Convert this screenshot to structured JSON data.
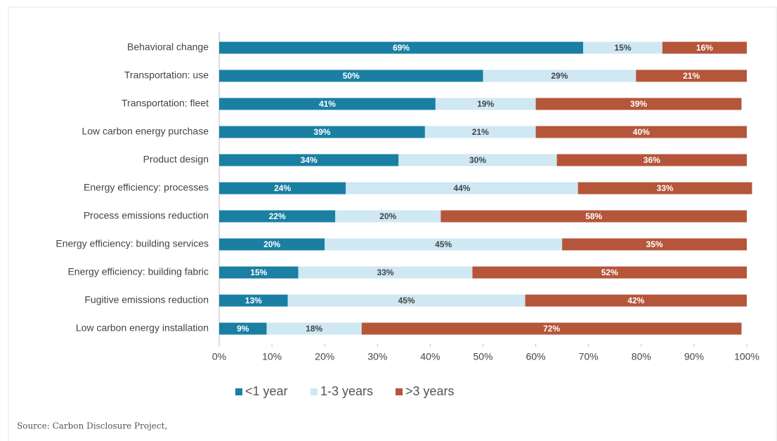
{
  "chart_data": {
    "type": "stacked-bar-horizontal",
    "categories": [
      "Behavioral change",
      "Transportation: use",
      "Transportation: fleet",
      "Low carbon energy purchase",
      "Product design",
      "Energy efficiency: processes",
      "Process emissions reduction",
      "Energy efficiency: building services",
      "Energy efficiency: building fabric",
      "Fugitive emissions reduction",
      "Low carbon energy installation"
    ],
    "series": [
      {
        "name": "<1 year",
        "color": "#1a7fa3",
        "values": [
          69,
          50,
          41,
          39,
          34,
          24,
          22,
          20,
          15,
          13,
          9
        ],
        "value_labels": [
          "69%",
          "50%",
          "41%",
          "39%",
          "34%",
          "24%",
          "22%",
          "20%",
          "15%",
          "13%",
          "9%"
        ]
      },
      {
        "name": "1-3 years",
        "color": "#cfe8f3",
        "values": [
          15,
          29,
          19,
          21,
          30,
          44,
          20,
          45,
          33,
          45,
          18
        ],
        "value_labels": [
          "15%",
          "29%",
          "19%",
          "21%",
          "30%",
          "44%",
          "20%",
          "45%",
          "33%",
          "45%",
          "18%"
        ]
      },
      {
        "name": ">3 years",
        "color": "#b5553a",
        "values": [
          16,
          21,
          39,
          40,
          36,
          33,
          58,
          35,
          52,
          42,
          72
        ],
        "value_labels": [
          "16%",
          "21%",
          "39%",
          "40%",
          "36%",
          "33%",
          "58%",
          "35%",
          "52%",
          "42%",
          "72%"
        ]
      }
    ],
    "xlim": [
      0,
      100
    ],
    "xticks": [
      {
        "value": 0,
        "label": "0%"
      },
      {
        "value": 10,
        "label": "10%"
      },
      {
        "value": 20,
        "label": "20%"
      },
      {
        "value": 30,
        "label": "30%"
      },
      {
        "value": 40,
        "label": "40%"
      },
      {
        "value": 50,
        "label": "50%"
      },
      {
        "value": 60,
        "label": "60%"
      },
      {
        "value": 70,
        "label": "70%"
      },
      {
        "value": 80,
        "label": "80%"
      },
      {
        "value": 90,
        "label": "90%"
      },
      {
        "value": 100,
        "label": "100%"
      }
    ],
    "grid": false,
    "legend": "bottom",
    "source": "Source: Carbon Disclosure Project,"
  }
}
